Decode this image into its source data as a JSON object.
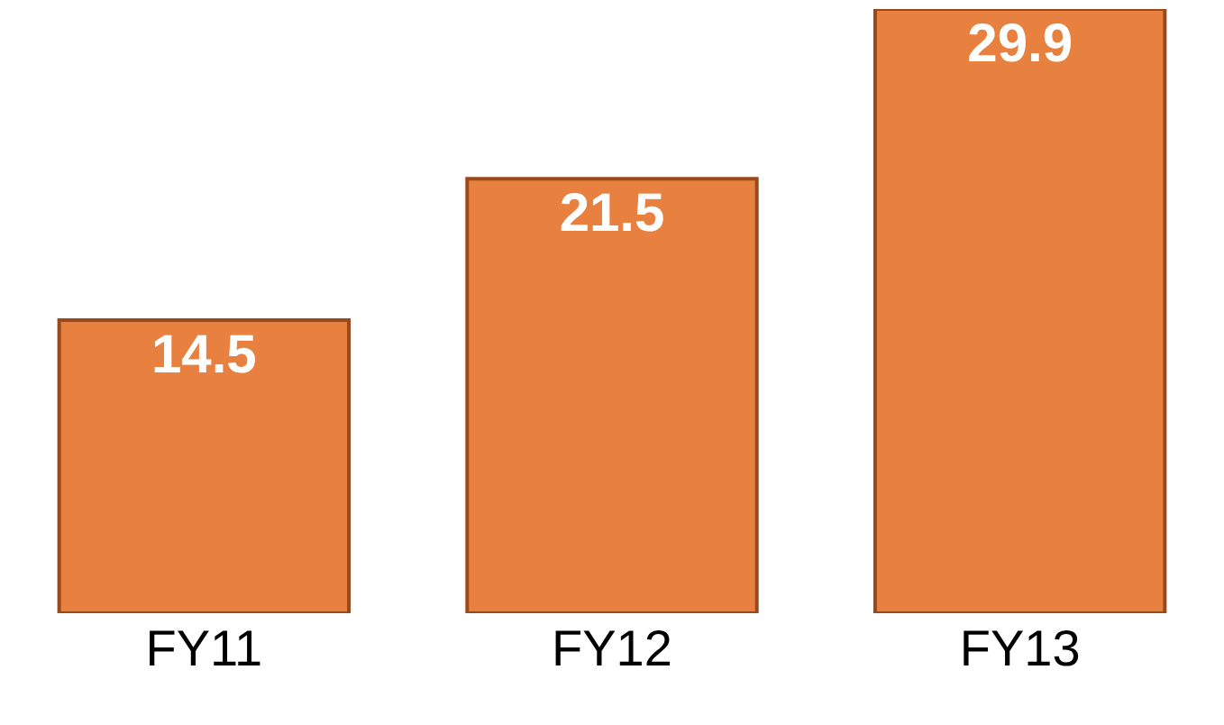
{
  "chart_data": {
    "type": "bar",
    "categories": [
      "FY11",
      "FY12",
      "FY13"
    ],
    "values": [
      14.5,
      21.5,
      29.9
    ],
    "color": "#e8803f",
    "data_labels": true
  }
}
